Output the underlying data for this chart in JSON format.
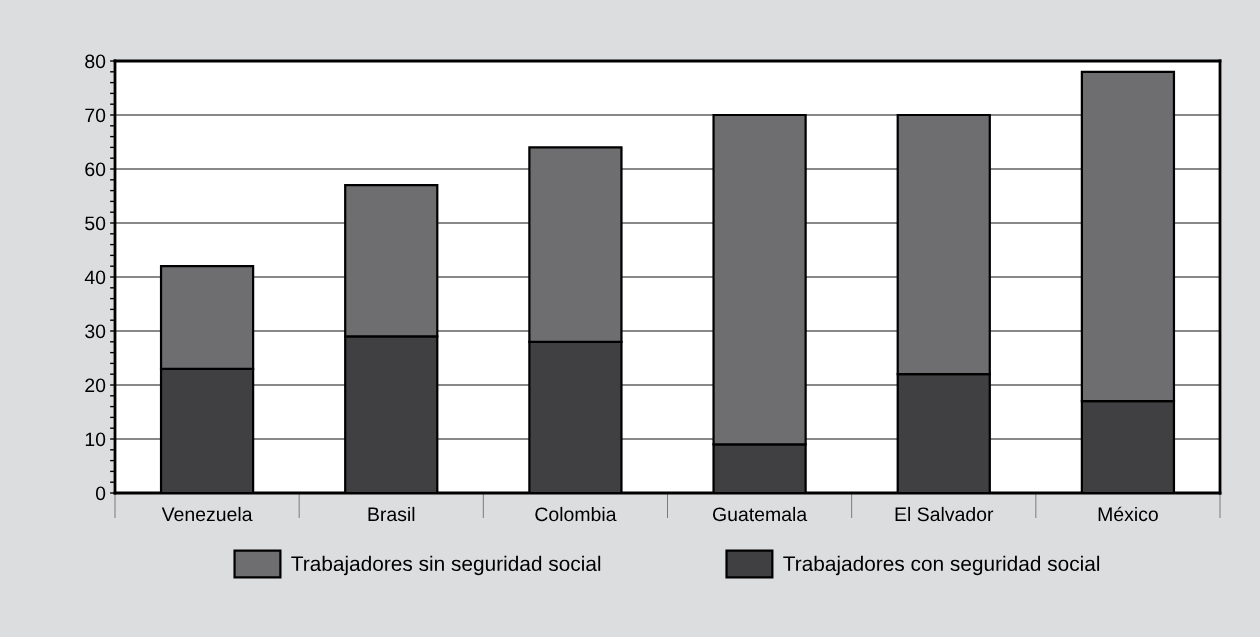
{
  "chart_data": {
    "type": "bar",
    "stacked": true,
    "categories": [
      "Venezuela",
      "Brasil",
      "Colombia",
      "Guatemala",
      "El Salvador",
      "México"
    ],
    "series": [
      {
        "name": "Trabajadores con seguridad social",
        "color": "#404042",
        "values": [
          23,
          29,
          28,
          9,
          22,
          17
        ]
      },
      {
        "name": "Trabajadores sin seguridad social",
        "color": "#6e6e70",
        "values": [
          19,
          28,
          36,
          61,
          48,
          61
        ]
      }
    ],
    "ylim": [
      0,
      80
    ],
    "yticks": [
      0,
      {
        "value": 2,
        "label": null
      },
      {
        "value": 4,
        "label": null
      },
      {
        "value": 6,
        "label": null
      },
      {
        "value": 8,
        "label": null
      },
      10,
      {
        "value": 12,
        "label": null
      },
      {
        "value": 14,
        "label": null
      },
      {
        "value": 16,
        "label": null
      },
      {
        "value": 18,
        "label": null
      },
      20,
      {
        "value": 22,
        "label": null
      },
      {
        "value": 24,
        "label": null
      },
      {
        "value": 26,
        "label": null
      },
      {
        "value": 28,
        "label": null
      },
      30,
      {
        "value": 32,
        "label": null
      },
      {
        "value": 34,
        "label": null
      },
      {
        "value": 36,
        "label": null
      },
      {
        "value": 38,
        "label": null
      },
      40,
      {
        "value": 42,
        "label": null
      },
      {
        "value": 44,
        "label": null
      },
      {
        "value": 46,
        "label": null
      },
      {
        "value": 48,
        "label": null
      },
      50,
      {
        "value": 52,
        "label": null
      },
      {
        "value": 54,
        "label": null
      },
      {
        "value": 56,
        "label": null
      },
      {
        "value": 58,
        "label": null
      },
      60,
      {
        "value": 62,
        "label": null
      },
      {
        "value": 64,
        "label": null
      },
      {
        "value": 66,
        "label": null
      },
      {
        "value": 68,
        "label": null
      },
      70,
      {
        "value": 72,
        "label": null
      },
      {
        "value": 74,
        "label": null
      },
      {
        "value": 76,
        "label": null
      },
      {
        "value": 78,
        "label": null
      },
      80
    ],
    "grid": "y",
    "legend": "bottom"
  }
}
